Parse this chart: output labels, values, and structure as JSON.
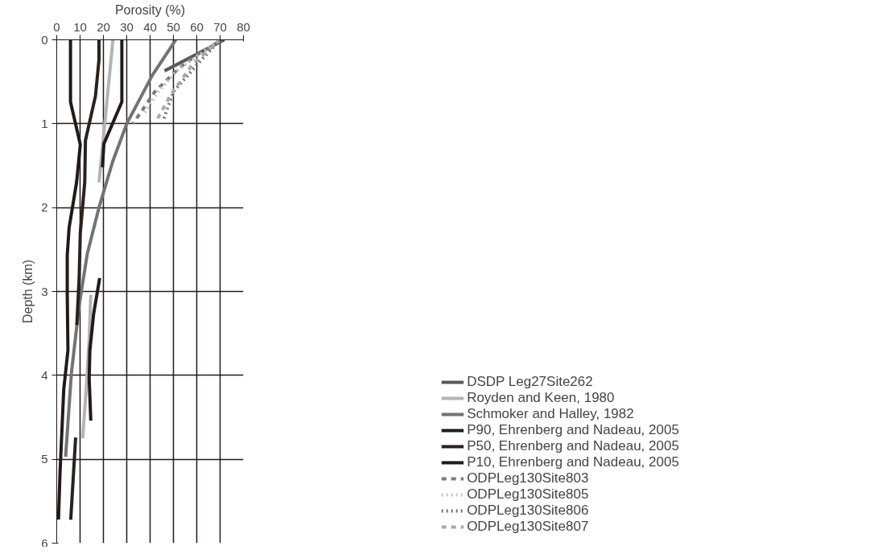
{
  "chart_data": {
    "type": "line",
    "xlabel": "Porosity (%)",
    "ylabel": "Depth (km)",
    "xlim": [
      0,
      80
    ],
    "xticks": [
      0,
      10,
      20,
      30,
      40,
      50,
      60,
      70,
      80
    ],
    "ylim": [
      6,
      0
    ],
    "yticks": [
      0,
      1,
      2,
      3,
      4,
      5,
      6
    ],
    "grid": true,
    "legend": "bottom right",
    "marker": "none",
    "series": [
      {
        "name": "DSDP Leg27Site262",
        "color": "#5a5a5a",
        "line_style": "solid",
        "x": [
          46.2,
          58,
          71.8
        ],
        "values": [
          0.37,
          0.2,
          0
        ]
      },
      {
        "name": "Royden and Keen, 1980",
        "color": "#b4b4b4",
        "line_style": "solid",
        "x": [
          24.1,
          18.1,
          null,
          14.6,
          13.9,
          12.6,
          11.1
        ],
        "values": [
          0,
          1.7,
          null,
          3.04,
          3.57,
          4.17,
          4.75
        ]
      },
      {
        "name": "Schmoker and Halley, 1982",
        "color": "#737373",
        "line_style": "solid",
        "x": [
          51.0,
          47.7,
          41,
          30.0,
          24,
          18.1,
          13.1,
          9.6,
          6.3,
          3.8
        ],
        "values": [
          0,
          0.14,
          0.42,
          1.0,
          1.45,
          2.0,
          2.55,
          3.17,
          3.97,
          4.97
        ]
      },
      {
        "name": "P90, Ehrenberg and Nadeau, 2005",
        "color": "#231a17",
        "line_style": "solid",
        "x": [
          27.9,
          27.9,
          20.2,
          19.6,
          null,
          18.4,
          15.8,
          14.2,
          13.9,
          14.6
        ],
        "values": [
          0,
          0.74,
          1.24,
          1.52,
          null,
          2.84,
          3.27,
          3.7,
          4.04,
          4.54
        ]
      },
      {
        "name": "P50, Ehrenberg and Nadeau, 2005",
        "color": "#2a211d",
        "line_style": "solid",
        "x": [
          18.1,
          18.1,
          16.6,
          12.3,
          12.0,
          10.1,
          9.6,
          8.6,
          null,
          8.1,
          6.0
        ],
        "values": [
          0,
          0.24,
          0.67,
          1.2,
          1.7,
          2.3,
          2.84,
          3.4,
          null,
          4.74,
          5.72
        ]
      },
      {
        "name": "P10, Ehrenberg and Nadeau, 2005",
        "color": "#231a17",
        "line_style": "solid",
        "x": [
          5.9,
          5.9,
          10.1,
          8.5,
          5.3,
          4.5,
          4.5,
          4.8,
          3.0,
          1.4,
          0.75
        ],
        "values": [
          0,
          0.74,
          1.25,
          1.7,
          2.24,
          2.57,
          3.0,
          3.7,
          4.17,
          5.17,
          5.72
        ]
      },
      {
        "name": "ODPLeg130Site803",
        "color": "#7a7a7a",
        "line_style": "dashed",
        "x": [
          68.4,
          60,
          52.3,
          42,
          32.7
        ],
        "values": [
          0.04,
          0.18,
          0.34,
          0.62,
          1.0
        ]
      },
      {
        "name": "ODPLeg130Site805",
        "color": "#c4c4c4",
        "line_style": "dotted",
        "x": [
          69,
          60,
          52,
          44,
          37
        ],
        "values": [
          0.02,
          0.2,
          0.36,
          0.6,
          0.9
        ]
      },
      {
        "name": "ODPLeg130Site806",
        "color": "#6e6e6e",
        "line_style": "dotted",
        "x": [
          70,
          60,
          50,
          45.5
        ],
        "values": [
          0,
          0.3,
          0.62,
          0.97
        ]
      },
      {
        "name": "ODPLeg130Site807",
        "color": "#a8a8a8",
        "line_style": "dashed",
        "x": [
          70,
          58,
          49,
          43
        ],
        "values": [
          0,
          0.3,
          0.65,
          0.95
        ]
      }
    ]
  }
}
